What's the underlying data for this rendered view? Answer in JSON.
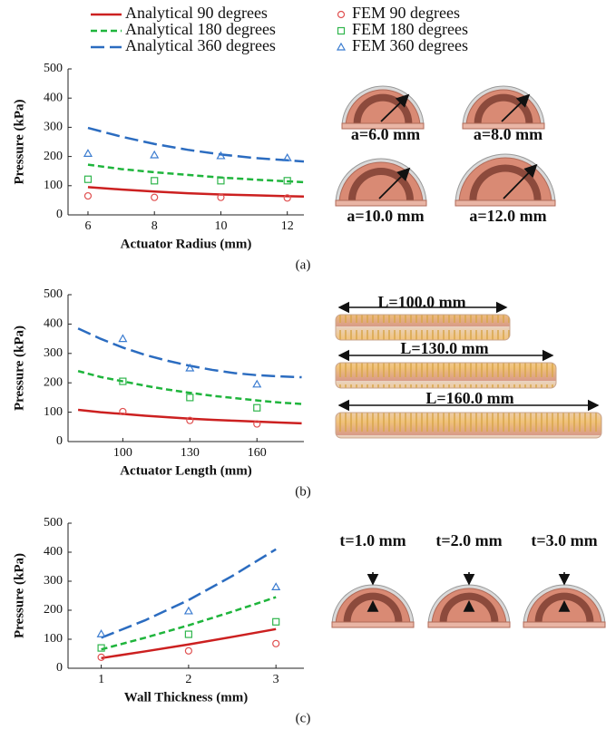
{
  "chart_data": [
    {
      "type": "line",
      "legend": "top",
      "xlabel": "Actuator Radius (mm)",
      "ylabel": "Pressure (kPa)",
      "caption": "(a)",
      "xlim": [
        5.4,
        12.5
      ],
      "xticks": [
        6,
        8,
        10,
        12
      ],
      "ylim": [
        0,
        500
      ],
      "yticks": [
        0,
        100,
        200,
        300,
        400,
        500
      ],
      "annotations": [
        "a=6.0 mm",
        "a=8.0 mm",
        "a=10.0 mm",
        "a=12.0 mm"
      ],
      "series": [
        {
          "name": "Analytical   90 degrees",
          "type": "line",
          "dash": "solid",
          "color": "#cc2020",
          "x": [
            6,
            7,
            8,
            9,
            10,
            11,
            12,
            12.5
          ],
          "values": [
            95,
            87,
            80,
            74,
            70,
            67,
            64,
            63
          ]
        },
        {
          "name": "Analytical 180 degrees",
          "type": "line",
          "dash": "short",
          "color": "#1fb53c",
          "x": [
            6,
            7,
            8,
            9,
            10,
            11,
            12,
            12.5
          ],
          "values": [
            172,
            157,
            146,
            137,
            128,
            121,
            115,
            112
          ]
        },
        {
          "name": "Analytical 360 degrees",
          "type": "line",
          "dash": "long",
          "color": "#2b6cc0",
          "x": [
            6,
            7,
            8,
            9,
            10,
            11,
            12,
            12.5
          ],
          "values": [
            298,
            268,
            243,
            223,
            207,
            195,
            187,
            183
          ]
        },
        {
          "name": "FEM   90 degrees",
          "type": "scatter",
          "marker": "circle",
          "color": "#e05050",
          "x": [
            6,
            8,
            10,
            12
          ],
          "values": [
            65,
            60,
            60,
            58
          ]
        },
        {
          "name": "FEM 180 degrees",
          "type": "scatter",
          "marker": "square",
          "color": "#2fb54c",
          "x": [
            6,
            8,
            10,
            12
          ],
          "values": [
            122,
            117,
            117,
            117
          ]
        },
        {
          "name": "FEM 360 degrees",
          "type": "scatter",
          "marker": "triangle",
          "color": "#3b7cd0",
          "x": [
            6,
            8,
            10,
            12
          ],
          "values": [
            210,
            205,
            202,
            195
          ]
        }
      ]
    },
    {
      "type": "line",
      "xlabel": "Actuator Length (mm)",
      "ylabel": "Pressure (kPa)",
      "caption": "(b)",
      "xlim": [
        75.5,
        181
      ],
      "xticks": [
        100,
        130,
        160
      ],
      "ylim": [
        0,
        500
      ],
      "yticks": [
        0,
        100,
        200,
        300,
        400,
        500
      ],
      "annotations": [
        "L=100.0 mm",
        "L=130.0 mm",
        "L=160.0 mm"
      ],
      "series": [
        {
          "name": "Analytical   90 degrees",
          "type": "line",
          "dash": "solid",
          "color": "#cc2020",
          "x": [
            80,
            90,
            100,
            110,
            120,
            130,
            140,
            150,
            160,
            170,
            180
          ],
          "values": [
            108,
            100,
            94,
            88,
            83,
            78,
            74,
            71,
            68,
            65,
            62
          ]
        },
        {
          "name": "Analytical 180 degrees",
          "type": "line",
          "dash": "short",
          "color": "#1fb53c",
          "x": [
            80,
            90,
            100,
            110,
            120,
            130,
            140,
            150,
            160,
            170,
            180
          ],
          "values": [
            240,
            220,
            205,
            190,
            177,
            166,
            156,
            148,
            140,
            133,
            128
          ]
        },
        {
          "name": "Analytical 360 degrees",
          "type": "line",
          "dash": "long",
          "color": "#2b6cc0",
          "x": [
            80,
            90,
            100,
            110,
            120,
            130,
            140,
            150,
            160,
            170,
            180
          ],
          "values": [
            385,
            350,
            320,
            295,
            275,
            258,
            244,
            233,
            226,
            222,
            219
          ]
        },
        {
          "name": "FEM   90 degrees",
          "type": "scatter",
          "marker": "circle",
          "color": "#e05050",
          "x": [
            100,
            130,
            160
          ],
          "values": [
            102,
            72,
            60
          ]
        },
        {
          "name": "FEM 180 degrees",
          "type": "scatter",
          "marker": "square",
          "color": "#2fb54c",
          "x": [
            100,
            130,
            160
          ],
          "values": [
            205,
            150,
            115
          ]
        },
        {
          "name": "FEM 360 degrees",
          "type": "scatter",
          "marker": "triangle",
          "color": "#3b7cd0",
          "x": [
            100,
            130,
            160
          ],
          "values": [
            350,
            250,
            195
          ]
        }
      ]
    },
    {
      "type": "line",
      "xlabel": "Wall Thickness (mm)",
      "ylabel": "Pressure (kPa)",
      "caption": "(c)",
      "xlim": [
        0.62,
        3.32
      ],
      "xticks": [
        1,
        2,
        3
      ],
      "ylim": [
        0,
        500
      ],
      "yticks": [
        0,
        100,
        200,
        300,
        400,
        500
      ],
      "annotations": [
        "t=1.0 mm",
        "t=2.0 mm",
        "t=3.0 mm"
      ],
      "series": [
        {
          "name": "Analytical   90 degrees",
          "type": "line",
          "dash": "solid",
          "color": "#cc2020",
          "x": [
            1,
            1.5,
            2,
            2.5,
            3
          ],
          "values": [
            35,
            58,
            82,
            108,
            135
          ]
        },
        {
          "name": "Analytical 180 degrees",
          "type": "line",
          "dash": "short",
          "color": "#1fb53c",
          "x": [
            1,
            1.5,
            2,
            2.5,
            3
          ],
          "values": [
            65,
            105,
            148,
            195,
            245
          ]
        },
        {
          "name": "Analytical 360 degrees",
          "type": "line",
          "dash": "long",
          "color": "#2b6cc0",
          "x": [
            1,
            1.5,
            2,
            2.5,
            3
          ],
          "values": [
            105,
            165,
            235,
            318,
            410
          ]
        },
        {
          "name": "FEM   90 degrees",
          "type": "scatter",
          "marker": "circle",
          "color": "#e05050",
          "x": [
            1,
            2,
            3
          ],
          "values": [
            38,
            60,
            85
          ]
        },
        {
          "name": "FEM 180 degrees",
          "type": "scatter",
          "marker": "square",
          "color": "#2fb54c",
          "x": [
            1,
            2,
            3
          ],
          "values": [
            70,
            117,
            160
          ]
        },
        {
          "name": "FEM 360 degrees",
          "type": "scatter",
          "marker": "triangle",
          "color": "#3b7cd0",
          "x": [
            1,
            2,
            3
          ],
          "values": [
            118,
            197,
            280
          ]
        }
      ]
    }
  ]
}
